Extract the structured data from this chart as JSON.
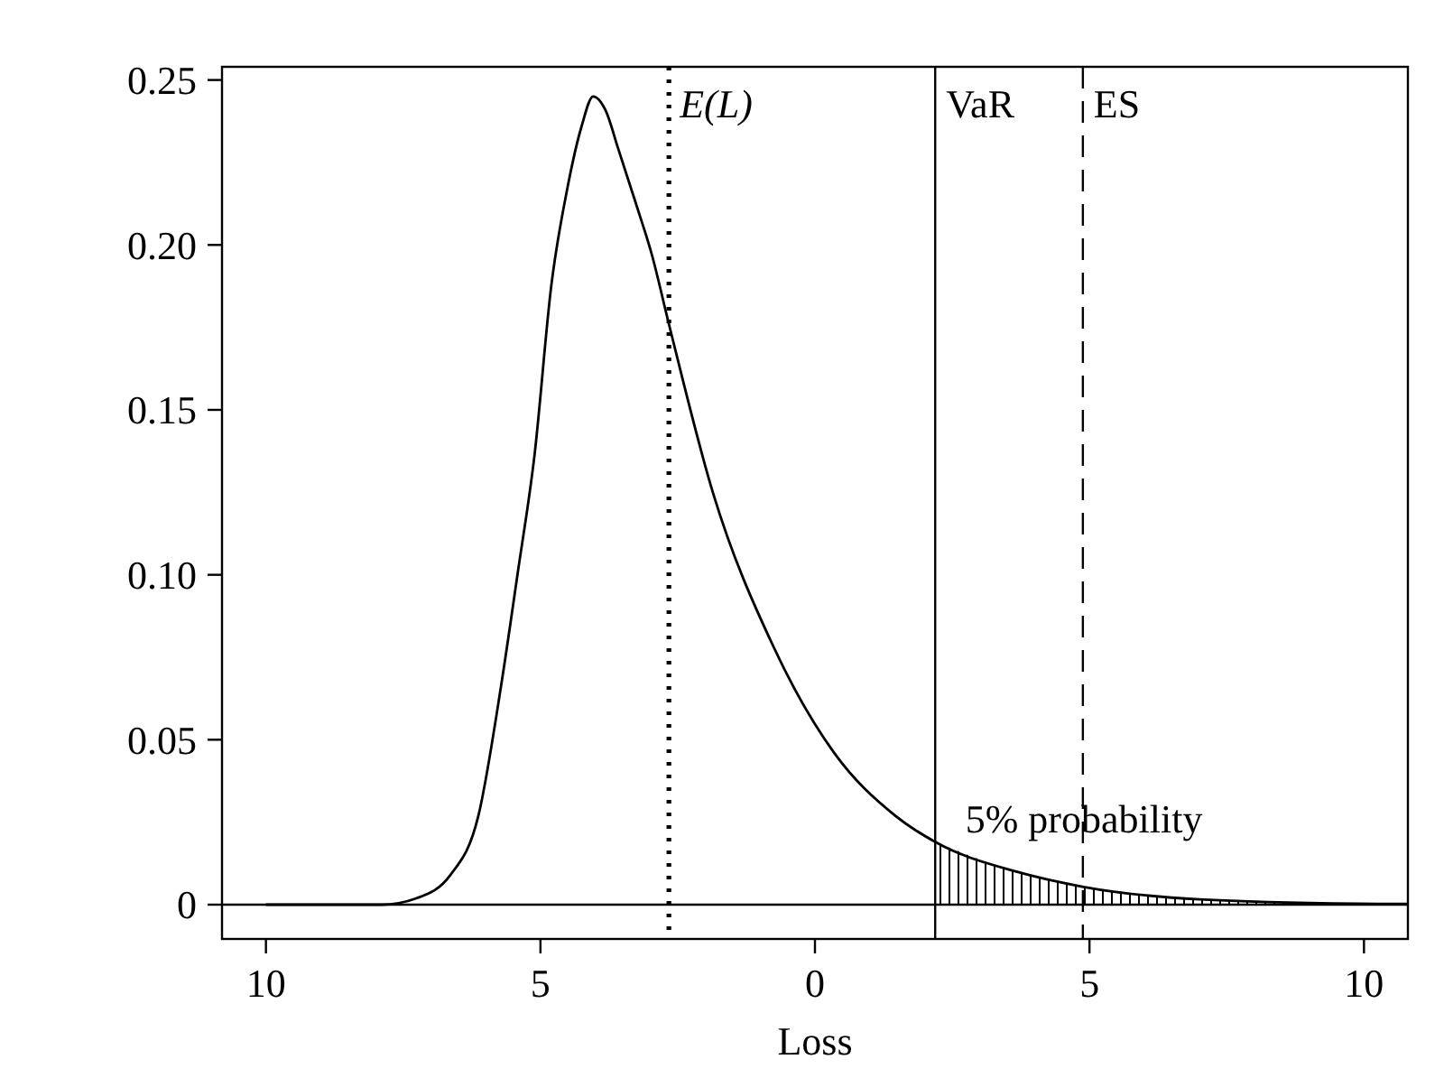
{
  "chart_data": {
    "type": "line",
    "xlabel": "Loss",
    "xlim": [
      -10.8,
      10.8
    ],
    "ylim": [
      -0.0104,
      0.254
    ],
    "xticks": [
      {
        "value": -10,
        "label": "10"
      },
      {
        "value": -5,
        "label": "5"
      },
      0,
      5,
      10
    ],
    "yticks": [
      {
        "value": 0,
        "label": "0"
      },
      {
        "value": 0.05,
        "label": "0.05"
      },
      {
        "value": 0.1,
        "label": "0.10"
      },
      {
        "value": 0.15,
        "label": "0.15"
      },
      {
        "value": 0.2,
        "label": "0.20"
      },
      {
        "value": 0.25,
        "label": "0.25"
      }
    ],
    "grid": false,
    "marker": "none",
    "series": [
      {
        "color": "#000000",
        "x": [
          -10,
          -9,
          -8,
          -7.9,
          -7.25,
          -6.64,
          -6.13,
          -5.72,
          -5.41,
          -5.11,
          -4.8,
          -4.5,
          -4.25,
          -4.04,
          -3.82,
          -3.58,
          -3.27,
          -2.97,
          -2.66,
          -1.86,
          -0.75,
          0.35,
          1.46,
          2.19,
          3.67,
          4.89,
          7.0,
          9.88,
          10.8
        ],
        "values": [
          0,
          0,
          0,
          0,
          0.002,
          0.009,
          0.027,
          0.066,
          0.101,
          0.136,
          0.188,
          0.218,
          0.236,
          0.245,
          0.241,
          0.229,
          0.213,
          0.197,
          0.176,
          0.125,
          0.078,
          0.046,
          0.027,
          0.019,
          0.01,
          0.0054,
          0.0016,
          0.0003,
          0.0002
        ]
      },
      {
        "type": "area",
        "color": "#000000",
        "x": [
          2.19,
          3.67,
          4.89,
          7.0,
          9.88,
          10.8
        ],
        "values": [
          0.019,
          0.01,
          0.0054,
          0.0016,
          0.0003,
          0.0002
        ]
      }
    ],
    "ref_lines": [
      {
        "axis": "y",
        "value": 0,
        "line_style": "solid"
      },
      {
        "axis": "x",
        "value": -2.66,
        "label": "E(L)",
        "line_style": "dotted"
      },
      {
        "axis": "x",
        "value": 2.19,
        "label": "VaR",
        "line_style": "solid"
      },
      {
        "axis": "x",
        "value": 4.88,
        "label": "ES",
        "line_style": "dashed"
      }
    ],
    "annotations": [
      {
        "text": "5% probability",
        "x": 4.9,
        "y": 0.022
      }
    ]
  }
}
